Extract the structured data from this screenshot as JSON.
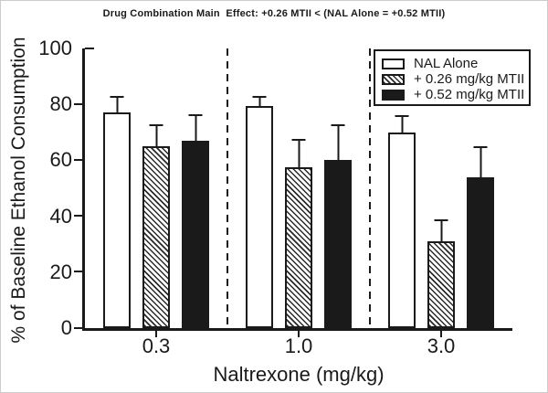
{
  "figure": {
    "background": "#ffffff",
    "ink": "#1a1a1a"
  },
  "chart_data": {
    "type": "bar",
    "title": "Drug Combination Main  Effect: +0.26 MTII < (NAL Alone = +0.52 MTII)",
    "xlabel": "Naltrexone (mg/kg)",
    "ylabel": "% of Baseline Ethanol Consumption",
    "ylim": [
      0,
      100
    ],
    "yticks": [
      0,
      20,
      40,
      60,
      80,
      100
    ],
    "grid": false,
    "legend_position": "top-right",
    "categories": [
      "0.3",
      "1.0",
      "3.0"
    ],
    "series": [
      {
        "name": "NAL Alone",
        "fill": "white",
        "values": [
          77,
          79.5,
          70
        ],
        "errors_upper": [
          6,
          3.5,
          6
        ]
      },
      {
        "name": "+ 0.26 mg/kg MTII",
        "fill": "hatched",
        "values": [
          65,
          57.5,
          31
        ],
        "errors_upper": [
          8,
          10,
          8
        ]
      },
      {
        "name": "+ 0.52 mg/kg MTII",
        "fill": "black",
        "values": [
          67,
          60,
          54
        ],
        "errors_upper": [
          9.5,
          13,
          11
        ]
      }
    ],
    "annotations": "dashed vertical separators between dose groups"
  }
}
